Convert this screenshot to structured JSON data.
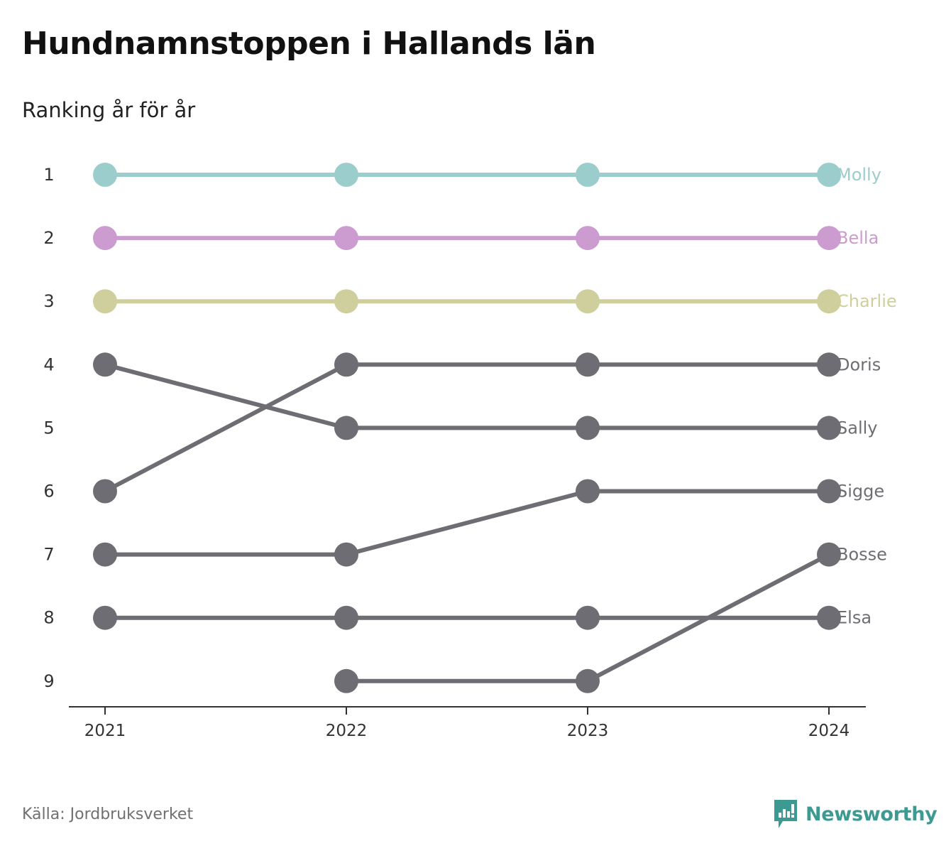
{
  "header": {
    "title": "Hundnamnstoppen i Hallands län",
    "subtitle": "Ranking år för år"
  },
  "footer": {
    "source": "Källa: Jordbruksverket",
    "brand": "Newsworthy"
  },
  "chart_data": {
    "type": "line",
    "x": [
      "2021",
      "2022",
      "2023",
      "2024"
    ],
    "y_ticks": [
      1,
      2,
      3,
      4,
      5,
      6,
      7,
      8,
      9
    ],
    "ylim": [
      1,
      9
    ],
    "y_reversed": true,
    "grid": false,
    "legend": "direct-labels-right",
    "series": [
      {
        "name": "Molly",
        "color": "#9bcdcc",
        "values": [
          1,
          1,
          1,
          1
        ]
      },
      {
        "name": "Bella",
        "color": "#cc9bd0",
        "values": [
          2,
          2,
          2,
          2
        ]
      },
      {
        "name": "Charlie",
        "color": "#cfcf9d",
        "values": [
          3,
          3,
          3,
          3
        ]
      },
      {
        "name": "Doris",
        "color": "#6e6d73",
        "values": [
          6,
          4,
          4,
          4
        ]
      },
      {
        "name": "Sally",
        "color": "#6e6d73",
        "values": [
          4,
          5,
          5,
          5
        ]
      },
      {
        "name": "Sigge",
        "color": "#6e6d73",
        "values": [
          7,
          7,
          6,
          6
        ]
      },
      {
        "name": "Bosse",
        "color": "#6e6d73",
        "values": [
          null,
          9,
          9,
          7
        ]
      },
      {
        "name": "Elsa",
        "color": "#6e6d73",
        "values": [
          8,
          8,
          8,
          8
        ]
      }
    ]
  }
}
